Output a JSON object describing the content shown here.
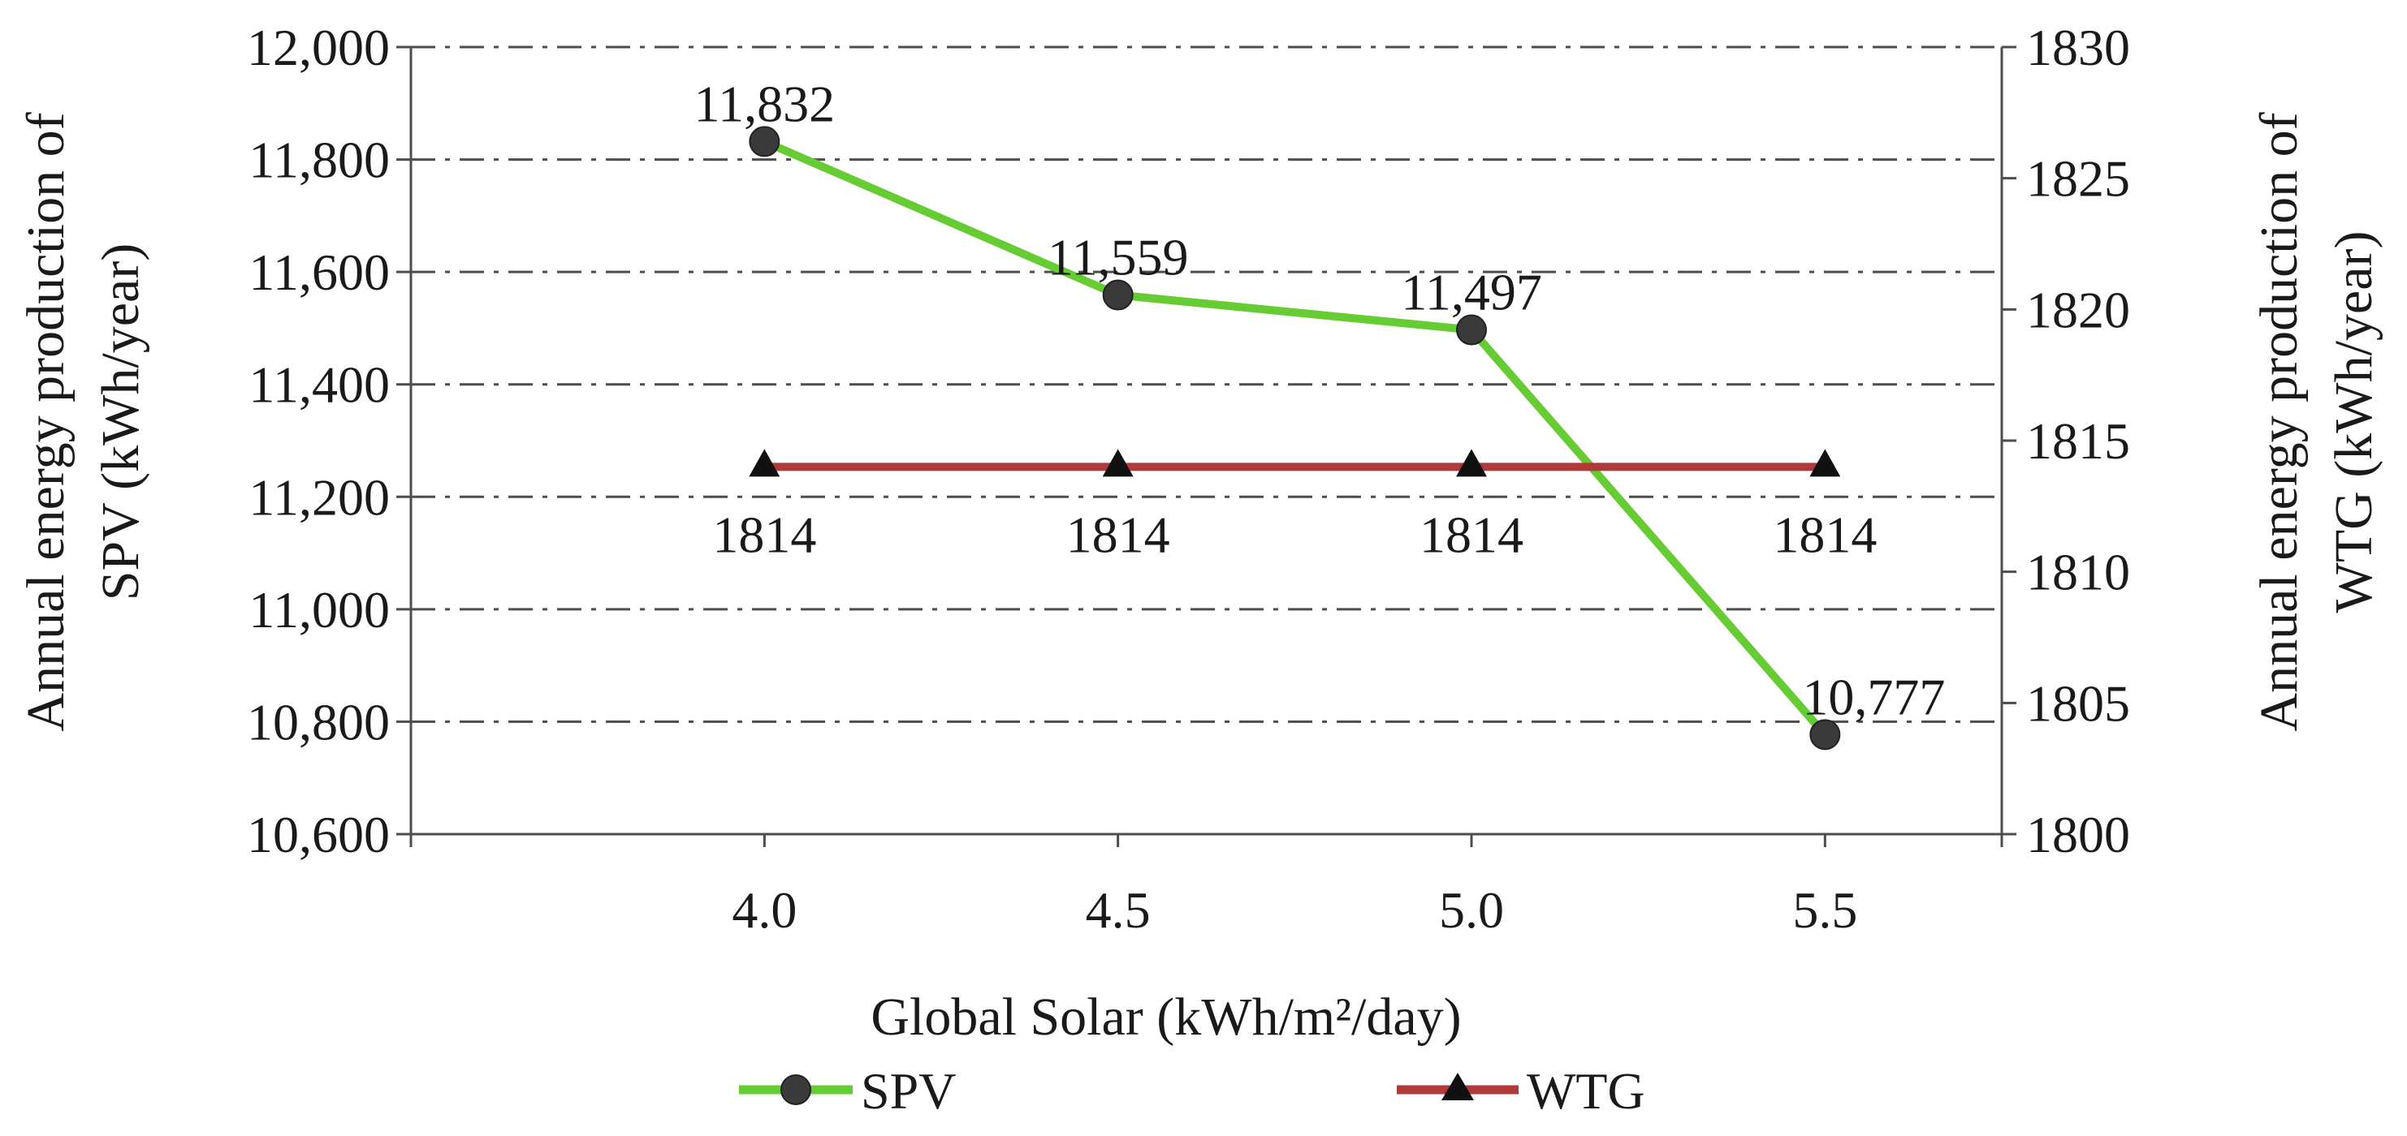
{
  "chart_data": {
    "type": "line",
    "categories": [
      "4.0",
      "4.5",
      "5.0",
      "5.5"
    ],
    "x": [
      4.0,
      4.5,
      5.0,
      5.5
    ],
    "series": [
      {
        "name": "SPV",
        "axis": "left",
        "values": [
          11832,
          11559,
          11497,
          10777
        ],
        "labels": [
          "11,832",
          "11,559",
          "11,497",
          "10,777"
        ],
        "color": "#66cc33",
        "marker": "circle",
        "marker_color": "#3a3a3a"
      },
      {
        "name": "WTG",
        "axis": "right",
        "values": [
          1814,
          1814,
          1814,
          1814
        ],
        "labels": [
          "1814",
          "1814",
          "1814",
          "1814"
        ],
        "color": "#b03a3a",
        "marker": "triangle",
        "marker_color": "#111111"
      }
    ],
    "xlabel": "Global Solar (kWh/m²/day)",
    "ylabel_left_line1": "Annual energy production of",
    "ylabel_left_line2": "SPV (kWh/year)",
    "ylabel_right_line1": "Annual energy production of",
    "ylabel_right_line2": "WTG (kWh/year)",
    "ylim_left": [
      10600,
      12000
    ],
    "yticks_left": [
      "10,600",
      "10,800",
      "11,000",
      "11,200",
      "11,400",
      "11,600",
      "11,800",
      "12,000"
    ],
    "ylim_right": [
      1800,
      1830
    ],
    "yticks_right": [
      "1800",
      "1805",
      "1810",
      "1815",
      "1820",
      "1825",
      "1830"
    ],
    "grid": true,
    "legend_position": "bottom",
    "legend": [
      "SPV",
      "WTG"
    ]
  }
}
